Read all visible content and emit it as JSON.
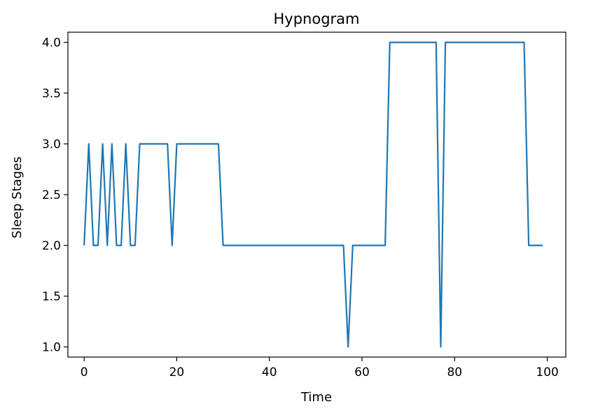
{
  "chart_data": {
    "type": "line",
    "title": "Hypnogram",
    "xlabel": "Time",
    "ylabel": "Sleep Stages",
    "xlim": [
      -3.5,
      104
    ],
    "ylim": [
      0.9,
      4.1
    ],
    "xticks": [
      0,
      20,
      40,
      60,
      80,
      100
    ],
    "xtick_labels": [
      "0",
      "20",
      "40",
      "60",
      "80",
      "100"
    ],
    "yticks": [
      1.0,
      1.5,
      2.0,
      2.5,
      3.0,
      3.5,
      4.0
    ],
    "ytick_labels": [
      "1.0",
      "1.5",
      "2.0",
      "2.5",
      "3.0",
      "3.5",
      "4.0"
    ],
    "grid": false,
    "legend": "none",
    "series": [
      {
        "color": "#1f77b4",
        "x": [
          0,
          1,
          2,
          3,
          4,
          5,
          6,
          7,
          8,
          9,
          10,
          11,
          12,
          13,
          14,
          15,
          16,
          17,
          18,
          19,
          20,
          21,
          22,
          23,
          24,
          25,
          26,
          27,
          28,
          29,
          30,
          31,
          32,
          33,
          34,
          35,
          36,
          37,
          38,
          39,
          40,
          41,
          42,
          43,
          44,
          45,
          46,
          47,
          48,
          49,
          50,
          51,
          52,
          53,
          54,
          55,
          56,
          57,
          58,
          59,
          60,
          61,
          62,
          63,
          64,
          65,
          66,
          67,
          68,
          69,
          70,
          71,
          72,
          73,
          74,
          75,
          76,
          77,
          78,
          79,
          80,
          81,
          82,
          83,
          84,
          85,
          86,
          87,
          88,
          89,
          90,
          91,
          92,
          93,
          94,
          95,
          96,
          97,
          98,
          99
        ],
        "y": [
          2,
          3,
          2,
          2,
          3,
          2,
          3,
          2,
          2,
          3,
          2,
          2,
          3,
          3,
          3,
          3,
          3,
          3,
          3,
          2,
          3,
          3,
          3,
          3,
          3,
          3,
          3,
          3,
          3,
          3,
          2,
          2,
          2,
          2,
          2,
          2,
          2,
          2,
          2,
          2,
          2,
          2,
          2,
          2,
          2,
          2,
          2,
          2,
          2,
          2,
          2,
          2,
          2,
          2,
          2,
          2,
          2,
          1,
          2,
          2,
          2,
          2,
          2,
          2,
          2,
          2,
          4,
          4,
          4,
          4,
          4,
          4,
          4,
          4,
          4,
          4,
          4,
          1,
          4,
          4,
          4,
          4,
          4,
          4,
          4,
          4,
          4,
          4,
          4,
          4,
          4,
          4,
          4,
          4,
          4,
          4,
          2,
          2,
          2,
          2
        ]
      }
    ]
  }
}
